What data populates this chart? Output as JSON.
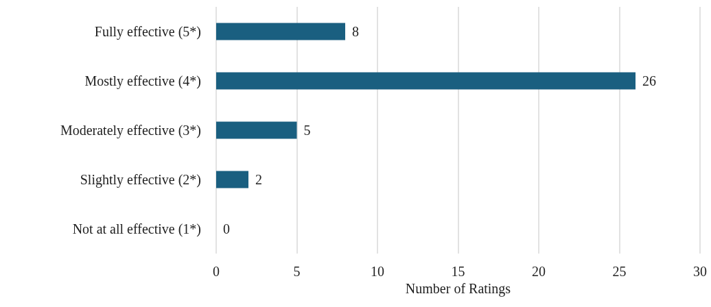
{
  "chart_data": {
    "type": "bar",
    "orientation": "horizontal",
    "xlabel": "Number of Ratings",
    "categories": [
      "Fully effective (5*)",
      "Mostly effective (4*)",
      "Moderately effective (3*)",
      "Slightly effective (2*)",
      "Not at all effective (1*)"
    ],
    "values": [
      8,
      26,
      5,
      2,
      0
    ],
    "color": "#1a5f80",
    "xlim": [
      0,
      30
    ],
    "xticks": [
      0,
      5,
      10,
      15,
      20,
      25,
      30
    ],
    "grid": "x",
    "data_labels": true
  }
}
